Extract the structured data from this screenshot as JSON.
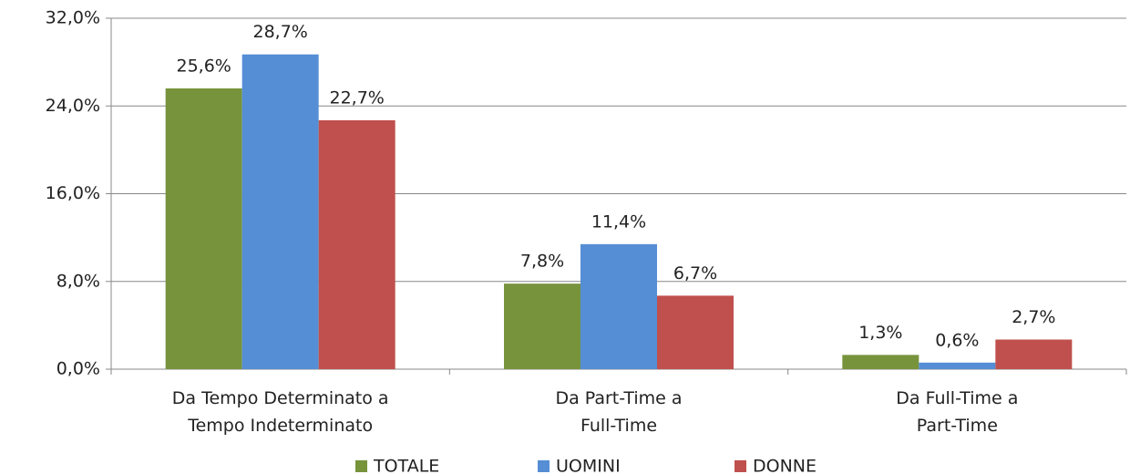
{
  "chart_data": {
    "type": "bar",
    "categories": [
      "Da Tempo Determinato a Tempo Indeterminato",
      "Da Part-Time a Full-Time",
      "Da Full-Time a Part-Time"
    ],
    "series": [
      {
        "name": "TOTALE",
        "color": "#77933c",
        "values": [
          25.6,
          7.8,
          1.3
        ],
        "value_labels": [
          "25,6%",
          "7,8%",
          "1,3%"
        ]
      },
      {
        "name": "UOMINI",
        "color": "#558ed5",
        "values": [
          28.7,
          11.4,
          0.6
        ],
        "value_labels": [
          "28,7%",
          "11,4%",
          "0,6%"
        ]
      },
      {
        "name": "DONNE",
        "color": "#c0504d",
        "values": [
          22.7,
          6.7,
          2.7
        ],
        "value_labels": [
          "22,7%",
          "6,7%",
          "2,7%"
        ]
      }
    ],
    "ylim": [
      0,
      32
    ],
    "yticks": [
      {
        "value": 0,
        "label": "0,0%"
      },
      {
        "value": 8,
        "label": "8,0%"
      },
      {
        "value": 16,
        "label": "16,0%"
      },
      {
        "value": 24,
        "label": "24,0%"
      },
      {
        "value": 32,
        "label": "32,0%"
      }
    ],
    "grid": true,
    "legend": "bottom"
  }
}
